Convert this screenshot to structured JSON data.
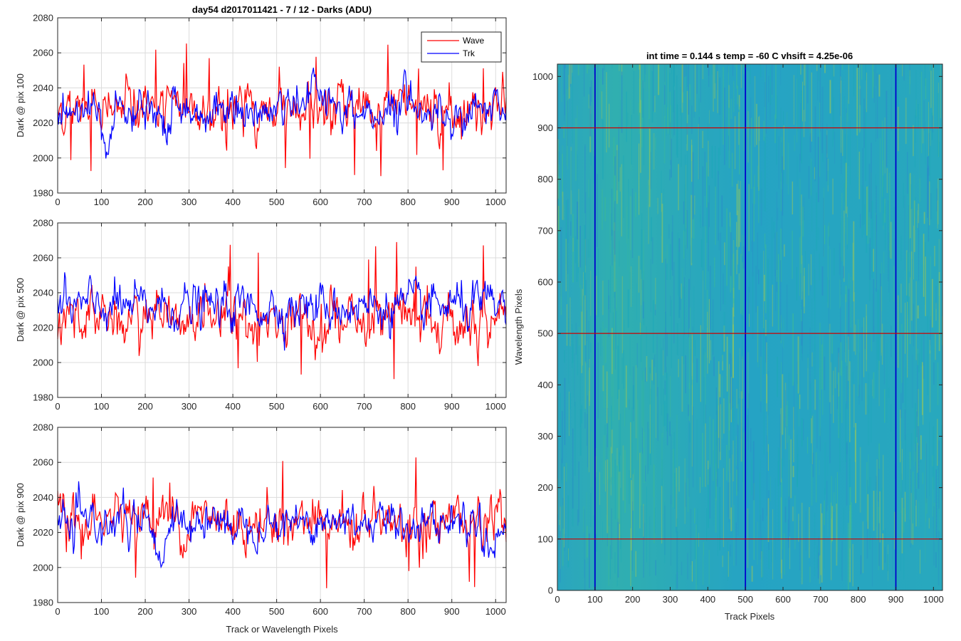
{
  "figure": {
    "background": "#ffffff"
  },
  "chart_data": [
    {
      "type": "line",
      "title": "day54 d2017011421 - 7 / 12 - Darks (ADU)",
      "xlabel": "",
      "ylabel": "Dark @ pix 100",
      "xlim": [
        0,
        1024
      ],
      "ylim": [
        1980,
        2080
      ],
      "xticks": [
        0,
        100,
        200,
        300,
        400,
        500,
        600,
        700,
        800,
        900,
        1000
      ],
      "yticks": [
        1980,
        2000,
        2020,
        2040,
        2060,
        2080
      ],
      "grid": true,
      "legend": {
        "placement": "top-right",
        "entries": [
          "Wave",
          "Trk"
        ]
      },
      "series": [
        {
          "name": "Wave",
          "color": "#ff0000",
          "mean": 2028,
          "noise": 8,
          "spike_max": 2066,
          "spike_min": 1985
        },
        {
          "name": "Trk",
          "color": "#0000ff",
          "mean": 2026,
          "noise": 6,
          "features": [
            {
              "x_range": [
                100,
                130
              ],
              "level": 2005
            },
            {
              "x_range": [
                240,
                260
              ],
              "level": 2008
            },
            {
              "x_range": [
                570,
                610
              ],
              "level": 2050
            },
            {
              "x_range": [
                500,
                560
              ],
              "level": 2035
            },
            {
              "x_range": [
                780,
                810
              ],
              "level": 2048
            }
          ]
        }
      ]
    },
    {
      "type": "line",
      "title": "",
      "xlabel": "",
      "ylabel": "Dark @ pix 500",
      "xlim": [
        0,
        1024
      ],
      "ylim": [
        1980,
        2080
      ],
      "xticks": [
        0,
        100,
        200,
        300,
        400,
        500,
        600,
        700,
        800,
        900,
        1000
      ],
      "yticks": [
        1980,
        2000,
        2020,
        2040,
        2060,
        2080
      ],
      "grid": true,
      "series": [
        {
          "name": "Wave",
          "color": "#ff0000",
          "mean": 2025,
          "noise": 8,
          "spike_max": 2070,
          "spike_min": 1988
        },
        {
          "name": "Trk",
          "color": "#0000ff",
          "mean": 2032,
          "noise": 7
        }
      ]
    },
    {
      "type": "line",
      "title": "",
      "xlabel": "Track or Wavelength Pixels",
      "ylabel": "Dark @ pix 900",
      "xlim": [
        0,
        1024
      ],
      "ylim": [
        1980,
        2080
      ],
      "xticks": [
        0,
        100,
        200,
        300,
        400,
        500,
        600,
        700,
        800,
        900,
        1000
      ],
      "yticks": [
        1980,
        2000,
        2020,
        2040,
        2060,
        2080
      ],
      "grid": true,
      "series": [
        {
          "name": "Wave",
          "color": "#ff0000",
          "mean": 2027,
          "noise": 8,
          "spike_max": 2063,
          "spike_min": 1987
        },
        {
          "name": "Trk",
          "color": "#0000ff",
          "mean": 2026,
          "noise": 6,
          "features": [
            {
              "x_range": [
                210,
                260
              ],
              "level": 2003
            },
            {
              "x_range": [
                20,
                40
              ],
              "level": 2015
            },
            {
              "x_range": [
                980,
                1010
              ],
              "level": 2005
            }
          ]
        }
      ]
    },
    {
      "type": "heatmap",
      "title": "int time = 0.144 s   temp = -60 C   vhsift = 4.25e-06",
      "xlabel": "Track Pixels",
      "ylabel": "Wavelength Pixels",
      "xlim": [
        0,
        1024
      ],
      "ylim": [
        0,
        1024
      ],
      "xticks": [
        0,
        100,
        200,
        300,
        400,
        500,
        600,
        700,
        800,
        900,
        1000
      ],
      "yticks": [
        0,
        100,
        200,
        300,
        400,
        500,
        600,
        700,
        800,
        900,
        1000
      ],
      "colormap": [
        "#2a8fc8",
        "#1ea8b8",
        "#3bb89a",
        "#8cc464"
      ],
      "vertical_lines": {
        "color": "#0000cc",
        "x": [
          100,
          500,
          900
        ]
      },
      "horizontal_lines": {
        "color": "#cc0000",
        "y": [
          100,
          500,
          900
        ]
      }
    }
  ]
}
